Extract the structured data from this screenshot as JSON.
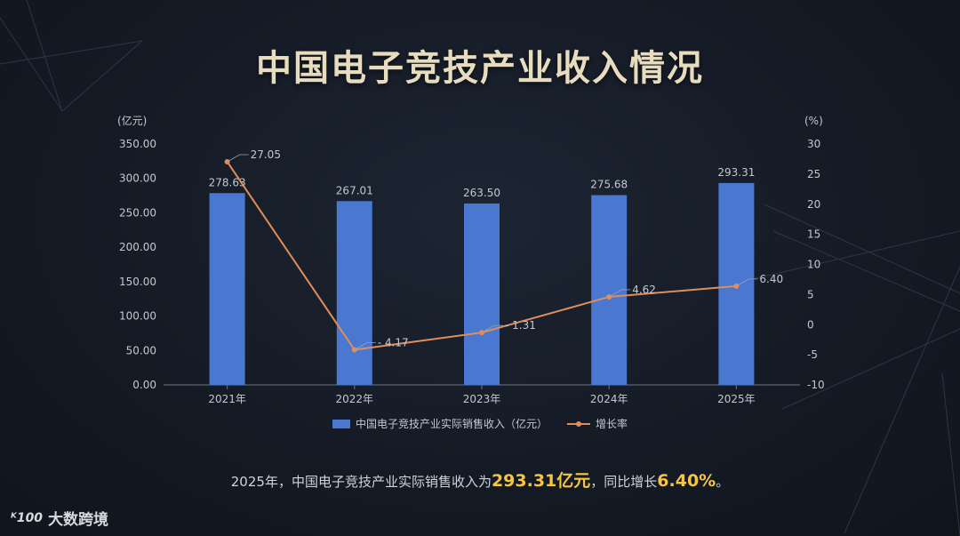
{
  "title": "中国电子竞技产业收入情况",
  "colors": {
    "bar": "#4a77cf",
    "line": "#e08d5c",
    "highlight": "#f5c542",
    "axis_text": "#c3c8d0"
  },
  "chart_data": {
    "type": "bar",
    "categories": [
      "2021年",
      "2022年",
      "2023年",
      "2024年",
      "2025年"
    ],
    "series": [
      {
        "name": "中国电子竞技产业实际销售收入（亿元）",
        "type": "bar",
        "axis": "left",
        "values": [
          278.63,
          267.01,
          263.5,
          275.68,
          293.31
        ],
        "labels": [
          "278.63",
          "267.01",
          "263.50",
          "275.68",
          "293.31"
        ]
      },
      {
        "name": "增长率",
        "type": "line",
        "axis": "right",
        "values": [
          27.05,
          -4.17,
          -1.31,
          4.62,
          6.4
        ],
        "labels": [
          "27.05",
          "- 4.17",
          "- 1.31",
          "4.62",
          "6.40"
        ]
      }
    ],
    "y_left": {
      "unit": "(亿元)",
      "min": 0,
      "max": 350,
      "ticks": [
        "0.00",
        "50.00",
        "100.00",
        "150.00",
        "200.00",
        "250.00",
        "300.00",
        "350.00"
      ]
    },
    "y_right": {
      "unit": "(%)",
      "min": -10,
      "max": 30,
      "ticks": [
        "-10",
        "-5",
        "0",
        "5",
        "10",
        "15",
        "20",
        "25",
        "30"
      ]
    },
    "grid": false,
    "legend_position": "bottom"
  },
  "legend": {
    "bar_label": "中国电子竞技产业实际销售收入（亿元）",
    "line_label": "增长率"
  },
  "summary": {
    "prefix": "2025年，中国电子竞技产业实际销售收入为",
    "revenue": "293.31亿元",
    "middle": "，同比增长",
    "growth": "6.40%",
    "suffix": "。"
  },
  "watermark": {
    "logo": "ᴷ100",
    "text": "大数跨境"
  }
}
